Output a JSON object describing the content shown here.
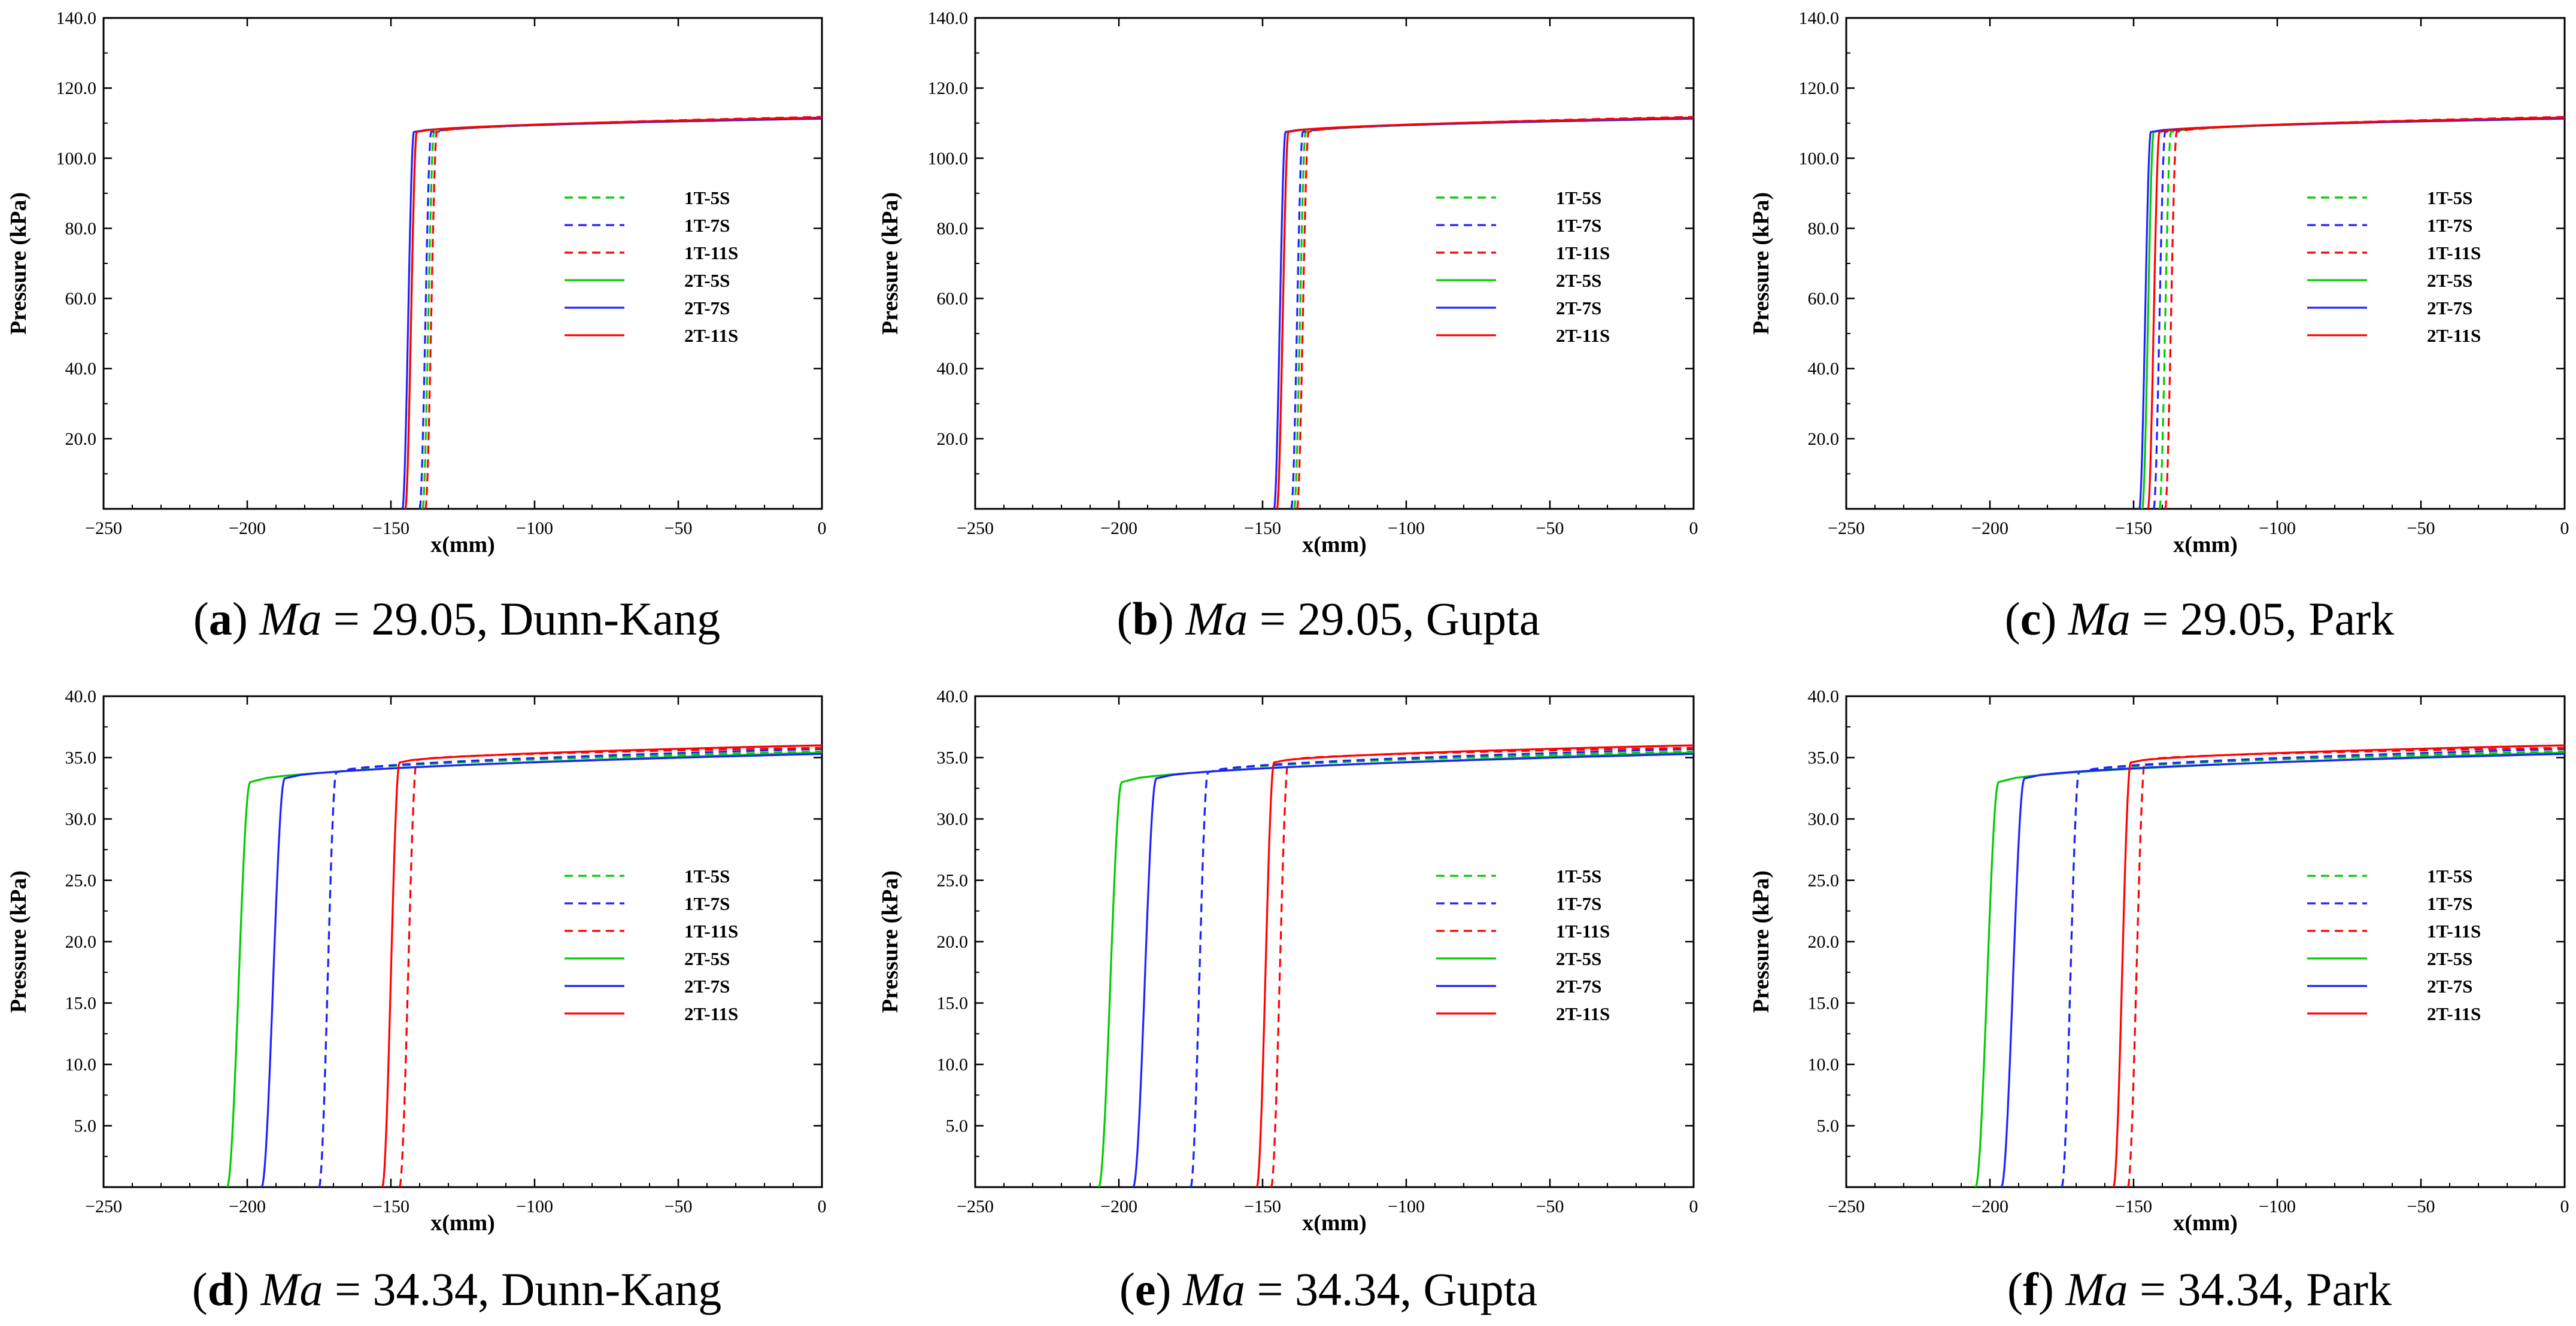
{
  "figure": {
    "type": "multi-panel line chart",
    "panels": 6,
    "layout": "2 rows x 3 columns"
  },
  "chart_data": [
    {
      "type": "line",
      "panel": "a",
      "caption": {
        "letter": "a",
        "var": "Ma",
        "text": " = 29.05, Dunn-Kang"
      },
      "xlabel": "x(mm)",
      "ylabel": "Pressure (kPa)",
      "xlim": [
        -250,
        0
      ],
      "ylim": [
        0,
        140
      ],
      "xticks": [
        -250,
        -200,
        -150,
        -100,
        -50,
        0
      ],
      "yticks": [
        20,
        40,
        60,
        80,
        100,
        120,
        140
      ],
      "ytick_decimals": 1,
      "legend": {
        "position": "center-right"
      },
      "series": [
        {
          "name": "1T-5S",
          "color": "#00cc00",
          "dash": "dashed",
          "shock_x": -137,
          "shock_width": 4,
          "p_post": 107.5,
          "p_end": 111.5
        },
        {
          "name": "1T-7S",
          "color": "#2020ff",
          "dash": "dashed",
          "shock_x": -138,
          "shock_width": 4,
          "p_post": 107.5,
          "p_end": 111.5
        },
        {
          "name": "1T-11S",
          "color": "#ff0000",
          "dash": "dashed",
          "shock_x": -136,
          "shock_width": 4,
          "p_post": 107.5,
          "p_end": 111.8
        },
        {
          "name": "2T-5S",
          "color": "#00cc00",
          "dash": "solid",
          "shock_x": -143,
          "shock_width": 4,
          "p_post": 107.5,
          "p_end": 111.3
        },
        {
          "name": "2T-7S",
          "color": "#2020ff",
          "dash": "solid",
          "shock_x": -144,
          "shock_width": 4,
          "p_post": 107.5,
          "p_end": 111.3
        },
        {
          "name": "2T-11S",
          "color": "#ff0000",
          "dash": "solid",
          "shock_x": -143,
          "shock_width": 4,
          "p_post": 107.5,
          "p_end": 111.6
        }
      ]
    },
    {
      "type": "line",
      "panel": "b",
      "caption": {
        "letter": "b",
        "var": "Ma",
        "text": " = 29.05, Gupta"
      },
      "xlabel": "x(mm)",
      "ylabel": "Pressure (kPa)",
      "xlim": [
        -250,
        0
      ],
      "ylim": [
        0,
        140
      ],
      "xticks": [
        -250,
        -200,
        -150,
        -100,
        -50,
        0
      ],
      "yticks": [
        20,
        40,
        60,
        80,
        100,
        120,
        140
      ],
      "ytick_decimals": 1,
      "legend": {
        "position": "center-right"
      },
      "series": [
        {
          "name": "1T-5S",
          "color": "#00cc00",
          "dash": "dashed",
          "shock_x": -137,
          "shock_width": 4,
          "p_post": 107.5,
          "p_end": 111.5
        },
        {
          "name": "1T-7S",
          "color": "#2020ff",
          "dash": "dashed",
          "shock_x": -138,
          "shock_width": 4,
          "p_post": 107.5,
          "p_end": 111.5
        },
        {
          "name": "1T-11S",
          "color": "#ff0000",
          "dash": "dashed",
          "shock_x": -136,
          "shock_width": 4,
          "p_post": 107.5,
          "p_end": 111.8
        },
        {
          "name": "2T-5S",
          "color": "#00cc00",
          "dash": "solid",
          "shock_x": -143,
          "shock_width": 4,
          "p_post": 107.5,
          "p_end": 111.3
        },
        {
          "name": "2T-7S",
          "color": "#2020ff",
          "dash": "solid",
          "shock_x": -144,
          "shock_width": 4,
          "p_post": 107.5,
          "p_end": 111.3
        },
        {
          "name": "2T-11S",
          "color": "#ff0000",
          "dash": "solid",
          "shock_x": -143,
          "shock_width": 4,
          "p_post": 107.5,
          "p_end": 111.6
        }
      ]
    },
    {
      "type": "line",
      "panel": "c",
      "caption": {
        "letter": "c",
        "var": "Ma",
        "text": " = 29.05, Park"
      },
      "xlabel": "x(mm)",
      "ylabel": "Pressure (kPa)",
      "xlim": [
        -250,
        0
      ],
      "ylim": [
        0,
        140
      ],
      "xticks": [
        -250,
        -200,
        -150,
        -100,
        -50,
        0
      ],
      "yticks": [
        20,
        40,
        60,
        80,
        100,
        120,
        140
      ],
      "ytick_decimals": 1,
      "legend": {
        "position": "center-right"
      },
      "series": [
        {
          "name": "1T-5S",
          "color": "#00cc00",
          "dash": "dashed",
          "shock_x": -139,
          "shock_width": 4,
          "p_post": 107.5,
          "p_end": 111.5
        },
        {
          "name": "1T-7S",
          "color": "#2020ff",
          "dash": "dashed",
          "shock_x": -141,
          "shock_width": 4,
          "p_post": 107.5,
          "p_end": 111.5
        },
        {
          "name": "1T-11S",
          "color": "#ff0000",
          "dash": "dashed",
          "shock_x": -137,
          "shock_width": 4,
          "p_post": 107.5,
          "p_end": 111.8
        },
        {
          "name": "2T-5S",
          "color": "#00cc00",
          "dash": "solid",
          "shock_x": -145,
          "shock_width": 4,
          "p_post": 107.5,
          "p_end": 111.3
        },
        {
          "name": "2T-7S",
          "color": "#2020ff",
          "dash": "solid",
          "shock_x": -146,
          "shock_width": 4,
          "p_post": 107.5,
          "p_end": 111.3
        },
        {
          "name": "2T-11S",
          "color": "#ff0000",
          "dash": "solid",
          "shock_x": -143,
          "shock_width": 4,
          "p_post": 107.5,
          "p_end": 111.6
        }
      ]
    },
    {
      "type": "line",
      "panel": "d",
      "caption": {
        "letter": "d",
        "var": "Ma",
        "text": " = 34.34, Dunn-Kang"
      },
      "xlabel": "x(mm)",
      "ylabel": "Pressure (kPa)",
      "xlim": [
        -250,
        0
      ],
      "ylim": [
        0,
        40
      ],
      "xticks": [
        -250,
        -200,
        -150,
        -100,
        -50,
        0
      ],
      "yticks": [
        5,
        10,
        15,
        20,
        25,
        30,
        35,
        40
      ],
      "ytick_decimals": 1,
      "legend": {
        "position": "center-right"
      },
      "series": [
        {
          "name": "1T-5S",
          "color": "#00cc00",
          "dash": "dashed",
          "shock_x": -172,
          "shock_width": 6,
          "p_post": 33.8,
          "p_end": 35.5
        },
        {
          "name": "1T-7S",
          "color": "#2020ff",
          "dash": "dashed",
          "shock_x": -172,
          "shock_width": 6,
          "p_post": 33.8,
          "p_end": 35.7
        },
        {
          "name": "1T-11S",
          "color": "#ff0000",
          "dash": "dashed",
          "shock_x": -144,
          "shock_width": 6,
          "p_post": 34.8,
          "p_end": 35.8
        },
        {
          "name": "2T-5S",
          "color": "#00cc00",
          "dash": "solid",
          "shock_x": -203,
          "shock_width": 8,
          "p_post": 33.0,
          "p_end": 35.4
        },
        {
          "name": "2T-7S",
          "color": "#2020ff",
          "dash": "solid",
          "shock_x": -191,
          "shock_width": 8,
          "p_post": 33.3,
          "p_end": 35.3
        },
        {
          "name": "2T-11S",
          "color": "#ff0000",
          "dash": "solid",
          "shock_x": -150,
          "shock_width": 6,
          "p_post": 34.6,
          "p_end": 36.0
        }
      ]
    },
    {
      "type": "line",
      "panel": "e",
      "caption": {
        "letter": "e",
        "var": "Ma",
        "text": " = 34.34, Gupta"
      },
      "xlabel": "x(mm)",
      "ylabel": "Pressure (kPa)",
      "xlim": [
        -250,
        0
      ],
      "ylim": [
        0,
        40
      ],
      "xticks": [
        -250,
        -200,
        -150,
        -100,
        -50,
        0
      ],
      "yticks": [
        5,
        10,
        15,
        20,
        25,
        30,
        35,
        40
      ],
      "ytick_decimals": 1,
      "legend": {
        "position": "center-right"
      },
      "series": [
        {
          "name": "1T-5S",
          "color": "#00cc00",
          "dash": "dashed",
          "shock_x": -172,
          "shock_width": 6,
          "p_post": 33.8,
          "p_end": 35.5
        },
        {
          "name": "1T-7S",
          "color": "#2020ff",
          "dash": "dashed",
          "shock_x": -172,
          "shock_width": 6,
          "p_post": 33.8,
          "p_end": 35.7
        },
        {
          "name": "1T-11S",
          "color": "#ff0000",
          "dash": "dashed",
          "shock_x": -144,
          "shock_width": 6,
          "p_post": 34.8,
          "p_end": 35.8
        },
        {
          "name": "2T-5S",
          "color": "#00cc00",
          "dash": "solid",
          "shock_x": -203,
          "shock_width": 8,
          "p_post": 33.0,
          "p_end": 35.4
        },
        {
          "name": "2T-7S",
          "color": "#2020ff",
          "dash": "solid",
          "shock_x": -191,
          "shock_width": 8,
          "p_post": 33.3,
          "p_end": 35.3
        },
        {
          "name": "2T-11S",
          "color": "#ff0000",
          "dash": "solid",
          "shock_x": -149,
          "shock_width": 6,
          "p_post": 34.6,
          "p_end": 36.0
        }
      ]
    },
    {
      "type": "line",
      "panel": "f",
      "caption": {
        "letter": "f",
        "var": "Ma",
        "text": " = 34.34, Park"
      },
      "xlabel": "x(mm)",
      "ylabel": "Pressure (kPa)",
      "xlim": [
        -250,
        0
      ],
      "ylim": [
        0,
        40
      ],
      "xticks": [
        -250,
        -200,
        -150,
        -100,
        -50,
        0
      ],
      "yticks": [
        5,
        10,
        15,
        20,
        25,
        30,
        35,
        40
      ],
      "ytick_decimals": 1,
      "legend": {
        "position": "center-right"
      },
      "series": [
        {
          "name": "1T-5S",
          "color": "#00cc00",
          "dash": "dashed",
          "shock_x": -172,
          "shock_width": 6,
          "p_post": 33.8,
          "p_end": 35.5
        },
        {
          "name": "1T-7S",
          "color": "#2020ff",
          "dash": "dashed",
          "shock_x": -172,
          "shock_width": 6,
          "p_post": 33.8,
          "p_end": 35.7
        },
        {
          "name": "1T-11S",
          "color": "#ff0000",
          "dash": "dashed",
          "shock_x": -149,
          "shock_width": 6,
          "p_post": 34.8,
          "p_end": 35.8
        },
        {
          "name": "2T-5S",
          "color": "#00cc00",
          "dash": "solid",
          "shock_x": -201,
          "shock_width": 8,
          "p_post": 33.0,
          "p_end": 35.4
        },
        {
          "name": "2T-7S",
          "color": "#2020ff",
          "dash": "solid",
          "shock_x": -192,
          "shock_width": 8,
          "p_post": 33.3,
          "p_end": 35.3
        },
        {
          "name": "2T-11S",
          "color": "#ff0000",
          "dash": "solid",
          "shock_x": -154,
          "shock_width": 6,
          "p_post": 34.6,
          "p_end": 36.0
        }
      ]
    }
  ]
}
